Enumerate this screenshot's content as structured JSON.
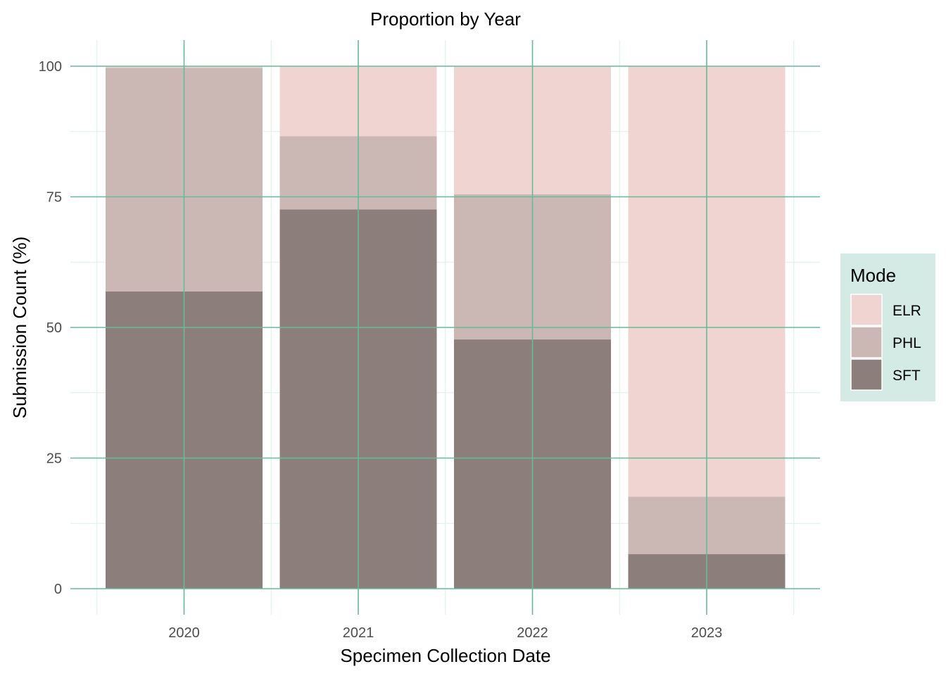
{
  "chart_data": {
    "type": "bar",
    "stacked": true,
    "title": "Proportion by Year",
    "xlabel": "Specimen Collection Date",
    "ylabel": "Submission Count (%)",
    "categories": [
      "2020",
      "2021",
      "2022",
      "2023"
    ],
    "ylim": [
      0,
      100
    ],
    "yticks": [
      0,
      25,
      50,
      75,
      100
    ],
    "grid": true,
    "legend": {
      "title": "Mode",
      "position": "right"
    },
    "series": [
      {
        "name": "SFT",
        "color": "#8b7e7b",
        "values": [
          56.9,
          72.6,
          47.7,
          6.6
        ]
      },
      {
        "name": "PHL",
        "color": "#cbb7b4",
        "values": [
          42.8,
          14.0,
          27.8,
          11.0
        ]
      },
      {
        "name": "ELR",
        "color": "#efd4d1",
        "values": [
          0.3,
          13.4,
          24.5,
          82.4
        ]
      }
    ],
    "colors": {
      "grid_major": "#66bb99",
      "grid_minor": "#dcefe6",
      "legend_bg": "#d4ebe5"
    }
  }
}
